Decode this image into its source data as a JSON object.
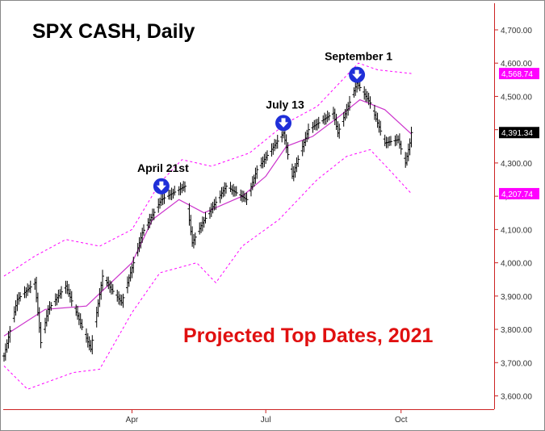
{
  "chart_data": {
    "type": "ohlc",
    "title": "SPX CASH, Daily",
    "annotation": "Projected Top Dates, 2021",
    "xlabel": "",
    "ylabel": "",
    "ylim": [
      3560,
      4780
    ],
    "y_ticks": [
      3600,
      3700,
      3800,
      3900,
      4000,
      4100,
      4200,
      4300,
      4400,
      4500,
      4600,
      4700
    ],
    "y_tick_labels": [
      "3,600.00",
      "3,700.00",
      "3,800.00",
      "3,900.00",
      "4,000.00",
      "4,100.00",
      "4,200.00",
      "4,300.00",
      "4,400.00",
      "4,500.00",
      "4,600.00",
      "4,700.00"
    ],
    "x_range": [
      "2021-01-04",
      "2021-11-30"
    ],
    "x_ticks": [
      {
        "date": "2021-04-01",
        "label": "Apr"
      },
      {
        "date": "2021-07-01",
        "label": "Jul"
      },
      {
        "date": "2021-10-01",
        "label": "Oct"
      }
    ],
    "grid": false,
    "price_path": [
      {
        "date": "2021-01-04",
        "close": 3720
      },
      {
        "date": "2021-01-13",
        "close": 3890
      },
      {
        "date": "2021-01-25",
        "close": 3940
      },
      {
        "date": "2021-01-29",
        "close": 3760
      },
      {
        "date": "2021-02-03",
        "close": 3860
      },
      {
        "date": "2021-02-15",
        "close": 3930
      },
      {
        "date": "2021-03-04",
        "close": 3740
      },
      {
        "date": "2021-03-12",
        "close": 3960
      },
      {
        "date": "2021-03-18",
        "close": 3920
      },
      {
        "date": "2021-03-25",
        "close": 3880
      },
      {
        "date": "2021-04-08",
        "close": 4090
      },
      {
        "date": "2021-04-21",
        "close": 4190
      },
      {
        "date": "2021-05-07",
        "close": 4230
      },
      {
        "date": "2021-05-12",
        "close": 4060
      },
      {
        "date": "2021-05-19",
        "close": 4120
      },
      {
        "date": "2021-06-04",
        "close": 4230
      },
      {
        "date": "2021-06-18",
        "close": 4190
      },
      {
        "date": "2021-06-25",
        "close": 4280
      },
      {
        "date": "2021-07-13",
        "close": 4390
      },
      {
        "date": "2021-07-19",
        "close": 4260
      },
      {
        "date": "2021-07-30",
        "close": 4400
      },
      {
        "date": "2021-08-16",
        "close": 4450
      },
      {
        "date": "2021-08-19",
        "close": 4390
      },
      {
        "date": "2021-09-01",
        "close": 4540
      },
      {
        "date": "2021-09-10",
        "close": 4480
      },
      {
        "date": "2021-09-20",
        "close": 4360
      },
      {
        "date": "2021-09-29",
        "close": 4370
      },
      {
        "date": "2021-10-04",
        "close": 4300
      },
      {
        "date": "2021-10-07",
        "close": 4360
      },
      {
        "date": "2021-10-08",
        "close": 4391.34
      }
    ],
    "moving_average": [
      {
        "date": "2021-01-04",
        "value": 3780
      },
      {
        "date": "2021-02-01",
        "value": 3860
      },
      {
        "date": "2021-03-01",
        "value": 3870
      },
      {
        "date": "2021-04-01",
        "value": 4000
      },
      {
        "date": "2021-04-15",
        "value": 4130
      },
      {
        "date": "2021-05-03",
        "value": 4190
      },
      {
        "date": "2021-05-20",
        "value": 4150
      },
      {
        "date": "2021-06-15",
        "value": 4200
      },
      {
        "date": "2021-07-01",
        "value": 4260
      },
      {
        "date": "2021-07-15",
        "value": 4350
      },
      {
        "date": "2021-08-02",
        "value": 4380
      },
      {
        "date": "2021-08-20",
        "value": 4440
      },
      {
        "date": "2021-09-03",
        "value": 4490
      },
      {
        "date": "2021-09-20",
        "value": 4460
      },
      {
        "date": "2021-10-08",
        "value": 4387
      }
    ],
    "upper_band": [
      {
        "date": "2021-01-04",
        "value": 3960
      },
      {
        "date": "2021-01-25",
        "value": 4020
      },
      {
        "date": "2021-02-15",
        "value": 4070
      },
      {
        "date": "2021-03-10",
        "value": 4050
      },
      {
        "date": "2021-04-01",
        "value": 4100
      },
      {
        "date": "2021-04-20",
        "value": 4240
      },
      {
        "date": "2021-05-05",
        "value": 4310
      },
      {
        "date": "2021-05-25",
        "value": 4290
      },
      {
        "date": "2021-06-20",
        "value": 4330
      },
      {
        "date": "2021-07-15",
        "value": 4420
      },
      {
        "date": "2021-08-05",
        "value": 4470
      },
      {
        "date": "2021-09-02",
        "value": 4600
      },
      {
        "date": "2021-09-15",
        "value": 4580
      },
      {
        "date": "2021-10-08",
        "value": 4568.74
      }
    ],
    "lower_band": [
      {
        "date": "2021-01-04",
        "value": 3690
      },
      {
        "date": "2021-01-20",
        "value": 3620
      },
      {
        "date": "2021-02-20",
        "value": 3670
      },
      {
        "date": "2021-03-10",
        "value": 3680
      },
      {
        "date": "2021-04-01",
        "value": 3850
      },
      {
        "date": "2021-04-20",
        "value": 3970
      },
      {
        "date": "2021-05-15",
        "value": 4000
      },
      {
        "date": "2021-05-28",
        "value": 3940
      },
      {
        "date": "2021-06-15",
        "value": 4050
      },
      {
        "date": "2021-07-10",
        "value": 4130
      },
      {
        "date": "2021-08-05",
        "value": 4250
      },
      {
        "date": "2021-08-25",
        "value": 4320
      },
      {
        "date": "2021-09-10",
        "value": 4340
      },
      {
        "date": "2021-09-25",
        "value": 4270
      },
      {
        "date": "2021-10-08",
        "value": 4207.74
      }
    ],
    "price_labels": [
      {
        "label": "4,568.74",
        "value": 4568.74,
        "color": "#ff00ff",
        "text_color": "#ffffff"
      },
      {
        "label": "4,391.34",
        "value": 4391.34,
        "color": "#000000",
        "text_color": "#ffffff"
      },
      {
        "label": "4,207.74",
        "value": 4207.74,
        "color": "#ff00ff",
        "text_color": "#ffffff"
      }
    ],
    "markers": [
      {
        "label": "April 21st",
        "date": "2021-04-21",
        "value": 4230
      },
      {
        "label": "July 13",
        "date": "2021-07-13",
        "value": 4420
      },
      {
        "label": "September 1",
        "date": "2021-09-01",
        "value": 4565
      }
    ],
    "colors": {
      "price_bars": "#000000",
      "moving_average": "#cc33cc",
      "bands": "#ff00ff",
      "annotation": "#e01010",
      "marker": "#1f2fd8",
      "axis_strip": "#cc2222"
    }
  }
}
